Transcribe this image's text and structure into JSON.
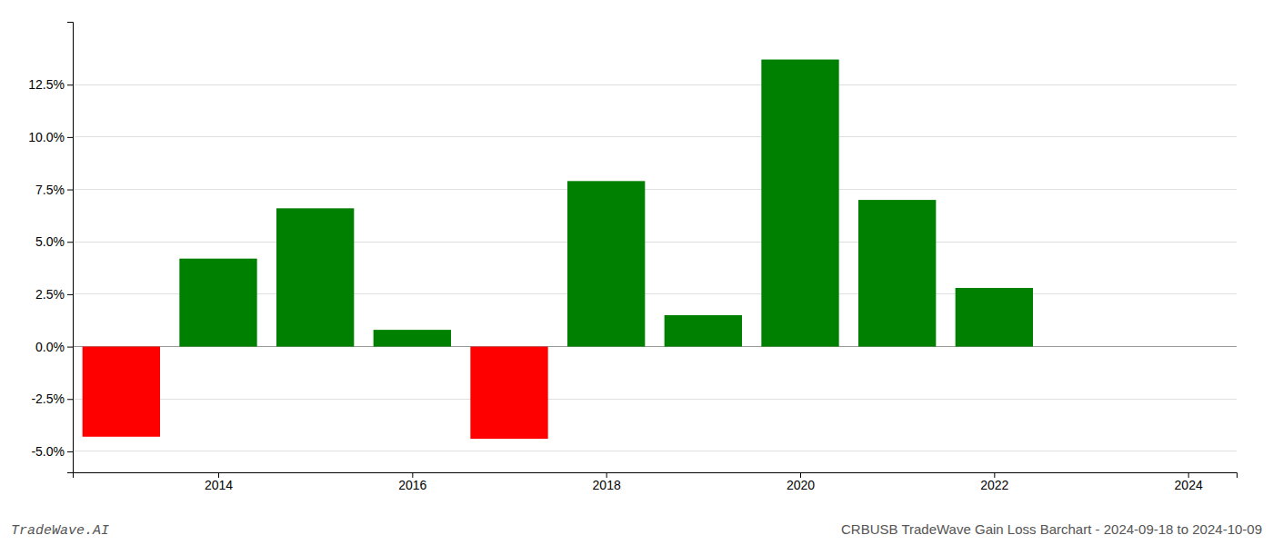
{
  "chart_data": {
    "type": "bar",
    "title": "CRBUSB TradeWave Gain Loss Barchart - 2024-09-18 to 2024-10-09",
    "annotations": [
      "TradeWave.AI"
    ],
    "x": [
      2013,
      2014,
      2015,
      2016,
      2017,
      2018,
      2019,
      2020,
      2021,
      2022,
      2023
    ],
    "values": [
      -4.3,
      4.2,
      6.6,
      0.8,
      -4.4,
      7.9,
      1.5,
      13.7,
      7.0,
      2.8,
      0.0
    ],
    "colors": [
      "#ff0000",
      "#008000",
      "#008000",
      "#008000",
      "#ff0000",
      "#008000",
      "#008000",
      "#008000",
      "#008000",
      "#008000",
      "#008000"
    ],
    "xlim": [
      2012.5,
      2024.5
    ],
    "xticks": [
      2014,
      2016,
      2018,
      2020,
      2022,
      2024
    ],
    "ylim": [
      -6.0,
      15.5
    ],
    "yticks": [
      {
        "value": -5.0,
        "label": "-5.0%"
      },
      {
        "value": -2.5,
        "label": "-2.5%"
      },
      {
        "value": 0.0,
        "label": "0.0%"
      },
      {
        "value": 2.5,
        "label": "2.5%"
      },
      {
        "value": 5.0,
        "label": "5.0%"
      },
      {
        "value": 7.5,
        "label": "7.5%"
      },
      {
        "value": 10.0,
        "label": "10.0%"
      },
      {
        "value": 12.5,
        "label": "12.5%"
      }
    ],
    "grid": true
  }
}
